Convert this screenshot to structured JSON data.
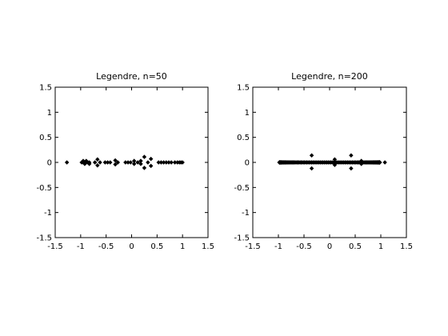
{
  "chart_data": [
    {
      "type": "scatter",
      "title": "Legendre, n=50",
      "xlim": [
        -1.5,
        1.5
      ],
      "ylim": [
        -1.5,
        1.5
      ],
      "xticks": [
        "-1.5",
        "-1",
        "-0.5",
        "0",
        "0.5",
        "1",
        "1.5"
      ],
      "yticks": [
        "1.5",
        "1",
        "0.5",
        "0",
        "-0.5",
        "-1",
        "-1.5"
      ],
      "marker": "diamond",
      "color": "#000000",
      "points": [
        [
          -1.27,
          0
        ],
        [
          -0.98,
          0
        ],
        [
          -0.95,
          0
        ],
        [
          -0.92,
          0
        ],
        [
          -0.89,
          0
        ],
        [
          -0.86,
          0
        ],
        [
          -0.83,
          0
        ],
        [
          -0.95,
          0.03
        ],
        [
          -0.89,
          0.03
        ],
        [
          -0.83,
          -0.03
        ],
        [
          -0.92,
          -0.03
        ],
        [
          -0.72,
          0
        ],
        [
          -0.67,
          0.06
        ],
        [
          -0.67,
          -0.06
        ],
        [
          -0.62,
          0
        ],
        [
          -0.52,
          0
        ],
        [
          -0.47,
          0
        ],
        [
          -0.42,
          0
        ],
        [
          -0.32,
          0.04
        ],
        [
          -0.32,
          -0.04
        ],
        [
          -0.27,
          0
        ],
        [
          -0.12,
          0
        ],
        [
          -0.07,
          0
        ],
        [
          -0.02,
          0
        ],
        [
          0.05,
          0.03
        ],
        [
          0.05,
          -0.03
        ],
        [
          0.12,
          0
        ],
        [
          0.18,
          0.03
        ],
        [
          0.18,
          -0.03
        ],
        [
          0.25,
          0.11
        ],
        [
          0.25,
          -0.11
        ],
        [
          0.32,
          0
        ],
        [
          0.38,
          0.07
        ],
        [
          0.38,
          -0.07
        ],
        [
          0.53,
          0
        ],
        [
          0.58,
          0
        ],
        [
          0.63,
          0
        ],
        [
          0.68,
          0
        ],
        [
          0.73,
          0
        ],
        [
          0.78,
          0
        ],
        [
          0.85,
          0
        ],
        [
          0.9,
          0
        ],
        [
          0.94,
          0
        ],
        [
          0.97,
          0
        ],
        [
          1.0,
          0
        ]
      ]
    },
    {
      "type": "scatter",
      "title": "Legendre, n=200",
      "xlim": [
        -1.5,
        1.5
      ],
      "ylim": [
        -1.5,
        1.5
      ],
      "xticks": [
        "-1.5",
        "-1",
        "-0.5",
        "0",
        "0.5",
        "1",
        "1.5"
      ],
      "yticks": [
        "1.5",
        "1",
        "0.5",
        "0",
        "-0.5",
        "-1",
        "-1.5"
      ],
      "marker": "diamond",
      "color": "#000000",
      "points": [
        [
          -0.95,
          0
        ],
        [
          -0.35,
          0.14
        ],
        [
          -0.35,
          -0.12
        ],
        [
          0.1,
          0.06
        ],
        [
          0.1,
          -0.05
        ],
        [
          0.42,
          0.14
        ],
        [
          0.42,
          -0.12
        ],
        [
          0.62,
          0.03
        ],
        [
          0.62,
          -0.03
        ],
        [
          1.08,
          0
        ]
      ],
      "dense_segments": [
        [
          -0.98,
          0.98
        ]
      ]
    }
  ]
}
